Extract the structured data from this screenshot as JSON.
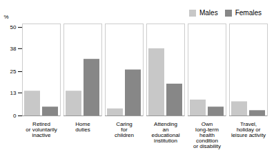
{
  "chart_data": {
    "type": "bar",
    "categories": [
      "Retired\nor voluntarily\ninactive",
      "Home\nduties",
      "Caring\nfor\nchildren",
      "Attending\nan\neducational\ninstitution",
      "Own\nlong-term\nhealth\ncondition\nor disability",
      "Travel,\nholiday or\nleisure activity"
    ],
    "series": [
      {
        "name": "Males",
        "color": "#c8c8c8",
        "values": [
          14,
          14,
          4,
          38,
          9,
          8
        ]
      },
      {
        "name": "Females",
        "color": "#878787",
        "values": [
          5,
          32,
          26,
          18,
          5,
          3
        ]
      }
    ],
    "ylabel": "%",
    "ylim": [
      0,
      52
    ],
    "yticks": [
      0,
      13,
      25,
      38,
      50
    ],
    "legend": "upper right"
  }
}
